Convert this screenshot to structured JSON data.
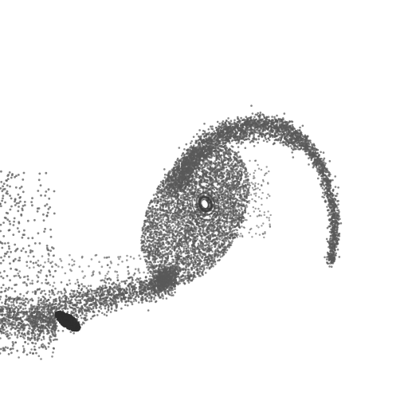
{
  "image": {
    "background_color": "#ffffff",
    "particle_color": "#5a5a5a",
    "core_color": "#2e2e2e",
    "core_ring_color": "#4a4a4a",
    "core_hole_color": "#ffffff"
  }
}
